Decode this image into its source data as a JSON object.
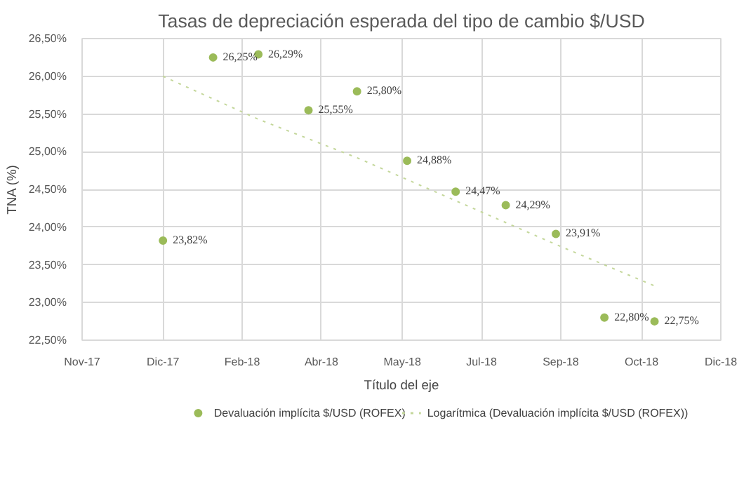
{
  "chart_data": {
    "type": "scatter",
    "title": "Tasas de depreciación esperada del tipo de cambio $/USD",
    "xlabel": "Título del eje",
    "ylabel": "TNA (%)",
    "xlim": [
      "2017-11-11",
      "2018-12-11"
    ],
    "xticks": [
      {
        "value": "2017-11-11",
        "label": "Nov-17"
      },
      {
        "value": "2017-12-31",
        "label": "Dic-17"
      },
      {
        "value": "2018-02-18",
        "label": "Feb-18"
      },
      {
        "value": "2018-04-08",
        "label": "Abr-18"
      },
      {
        "value": "2018-05-28",
        "label": "May-18"
      },
      {
        "value": "2018-07-16",
        "label": "Jul-18"
      },
      {
        "value": "2018-09-03",
        "label": "Sep-18"
      },
      {
        "value": "2018-10-23",
        "label": "Oct-18"
      },
      {
        "value": "2018-12-11",
        "label": "Dic-18"
      }
    ],
    "ylim": [
      22.5,
      26.5
    ],
    "yticks": [
      {
        "value": 22.5,
        "label": "22,50%"
      },
      {
        "value": 23,
        "label": "23,00%"
      },
      {
        "value": 23.5,
        "label": "23,50%"
      },
      {
        "value": 24,
        "label": "24,00%"
      },
      {
        "value": 24.5,
        "label": "24,50%"
      },
      {
        "value": 25,
        "label": "25,00%"
      },
      {
        "value": 25.5,
        "label": "25,50%"
      },
      {
        "value": 26,
        "label": "26,00%"
      },
      {
        "value": 26.5,
        "label": "26,50%"
      }
    ],
    "grid": true,
    "legend": "bottom",
    "series": [
      {
        "name": "Devaluación implícita $/USD (ROFEX)",
        "type": "scatter",
        "marker": "circle",
        "color": "#9bbb59",
        "x": [
          "2017-12-31",
          "2018-01-31",
          "2018-02-28",
          "2018-03-31",
          "2018-04-30",
          "2018-05-31",
          "2018-06-30",
          "2018-07-31",
          "2018-08-31",
          "2018-09-30",
          "2018-10-31"
        ],
        "values": [
          23.82,
          26.25,
          26.29,
          25.55,
          25.8,
          24.88,
          24.47,
          24.29,
          23.91,
          22.8,
          22.75
        ],
        "value_labels": [
          "23,82%",
          "26,25%",
          "26,29%",
          "25,55%",
          "25,80%",
          "24,88%",
          "24,47%",
          "24,29%",
          "23,91%",
          "22,80%",
          "22,75%"
        ]
      },
      {
        "name": "Logarítmica (Devaluación implícita $/USD (ROFEX))",
        "type": "line",
        "line_style": "dotted",
        "color": "#c4d79b",
        "x": [
          "2017-12-31",
          "2018-02-28",
          "2018-04-30",
          "2018-06-30",
          "2018-08-31",
          "2018-10-31"
        ],
        "values": [
          26.0,
          25.43,
          24.92,
          24.35,
          23.77,
          23.22
        ]
      }
    ]
  }
}
